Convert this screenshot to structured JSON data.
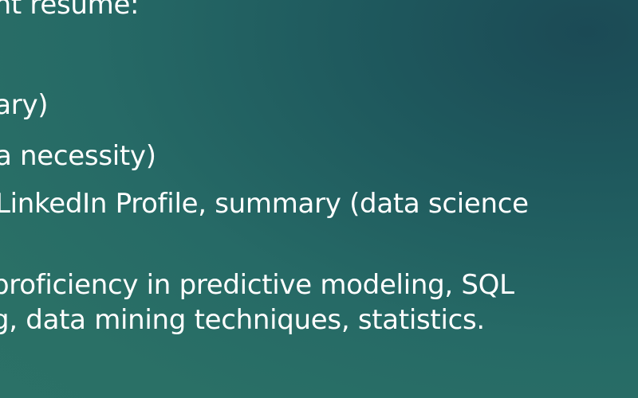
{
  "slide": {
    "lines": [
      "ent resume:",
      "nary)",
      "a necessity)",
      "LinkedIn Profile, summary (data science",
      "proficiency in predictive modeling, SQL",
      "g, data mining techniques, statistics."
    ]
  },
  "colors": {
    "background_top_right": "#1b4a55",
    "background_bottom_left": "#2b7167",
    "text": "#ffffff"
  }
}
